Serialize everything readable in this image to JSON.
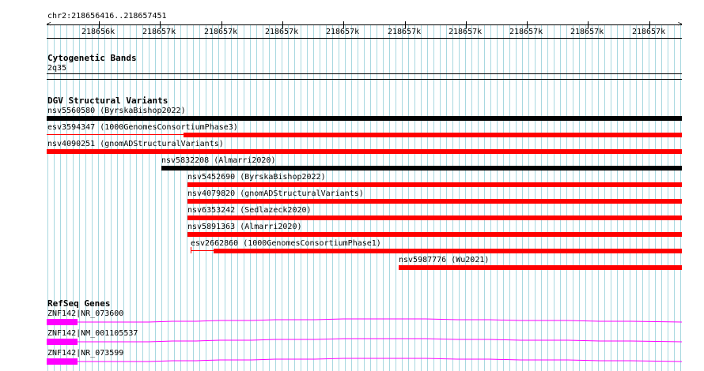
{
  "ruler": {
    "region": "chr2:218656416..218657451",
    "tick_labels": [
      "218656k",
      "218657k",
      "218657k",
      "218657k",
      "218657k",
      "218657k",
      "218657k",
      "218657k",
      "218657k",
      "218657k"
    ]
  },
  "cytoband": {
    "title": "Cytogenetic Bands",
    "band": "2q35"
  },
  "dgv": {
    "title": "DGV Structural Variants",
    "features": [
      {
        "label": "nsv5560580 (ByrskaBishop2022)",
        "color": "#000000"
      },
      {
        "label": "esv3594347 (1000GenomesConsortiumPhase3)",
        "color": "#ff0000"
      },
      {
        "label": "nsv4090251 (gnomADStructuralVariants)",
        "color": "#ff0000"
      },
      {
        "label": "nsv5832208 (Almarri2020)",
        "color": "#000000"
      },
      {
        "label": "nsv5452690 (ByrskaBishop2022)",
        "color": "#ff0000"
      },
      {
        "label": "nsv4079820 (gnomADStructuralVariants)",
        "color": "#ff0000"
      },
      {
        "label": "nsv6353242 (Sedlazeck2020)",
        "color": "#ff0000"
      },
      {
        "label": "nsv5891363 (Almarri2020)",
        "color": "#ff0000"
      },
      {
        "label": "esv2662860 (1000GenomesConsortiumPhase1)",
        "color": "#ff0000"
      },
      {
        "label": "nsv5987776 (Wu2021)",
        "color": "#ff0000"
      }
    ]
  },
  "refseq": {
    "title": "RefSeq Genes",
    "genes": [
      {
        "label": "ZNF142|NR_073600",
        "color": "#ff00ff"
      },
      {
        "label": "ZNF142|NM_001105537",
        "color": "#ff00ff"
      },
      {
        "label": "ZNF142|NR_073599",
        "color": "#ff00ff"
      }
    ]
  },
  "colors": {
    "grid": "#a8d8e0",
    "black": "#000000",
    "red": "#ff0000",
    "magenta": "#ff00ff"
  }
}
